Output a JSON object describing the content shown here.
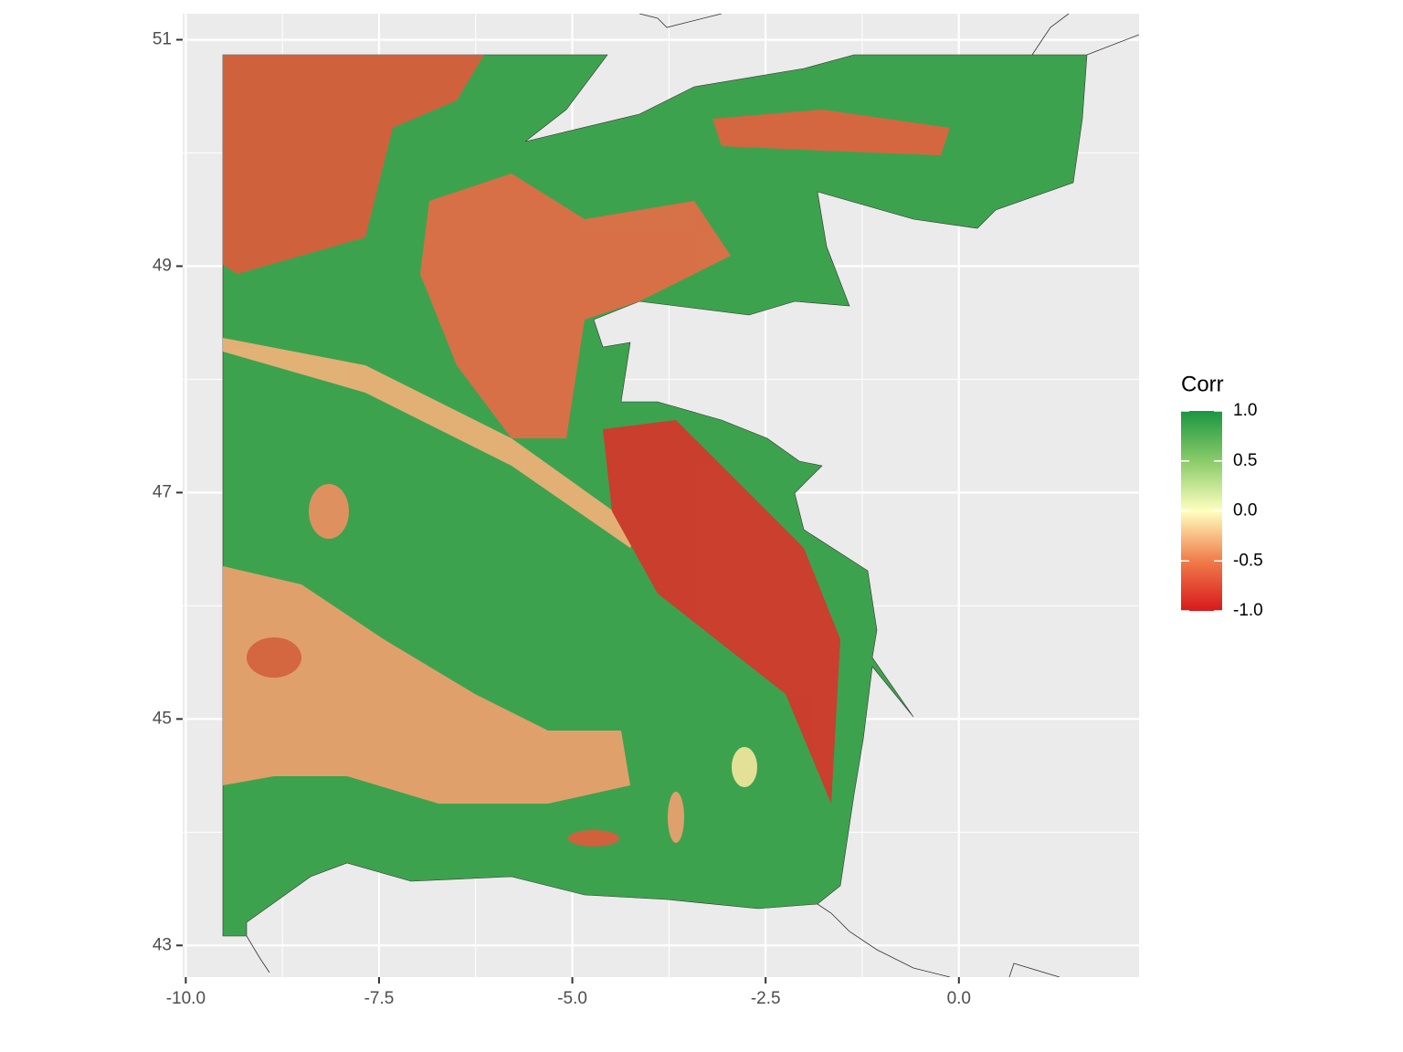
{
  "chart_data": {
    "type": "raster-map",
    "xlim": [
      -10.04,
      2.33
    ],
    "ylim": [
      42.72,
      51.23
    ],
    "xticks": [
      {
        "value": -10,
        "label": "-10.0"
      },
      -7.5,
      {
        "value": -5,
        "label": "-5.0"
      },
      -2.5,
      {
        "value": 0,
        "label": "0.0"
      }
    ],
    "yticks": [
      43,
      45,
      47,
      49,
      51
    ],
    "grid": true,
    "legend": {
      "title": "Corr",
      "clim": [
        -1,
        1
      ],
      "ticks": [
        {
          "value": 1,
          "label": "1.0"
        },
        0.5,
        {
          "value": 0,
          "label": "0.0"
        },
        -0.5,
        {
          "value": -1,
          "label": "-1.0"
        }
      ],
      "colorscale": [
        {
          "value": -1,
          "color": "#d7191c"
        },
        {
          "value": -0.5,
          "color": "#f07c4a"
        },
        {
          "value": 0,
          "color": "#ffffbf"
        },
        {
          "value": 0.5,
          "color": "#8acb6a"
        },
        {
          "value": 1,
          "color": "#1a9641"
        }
      ]
    }
  }
}
